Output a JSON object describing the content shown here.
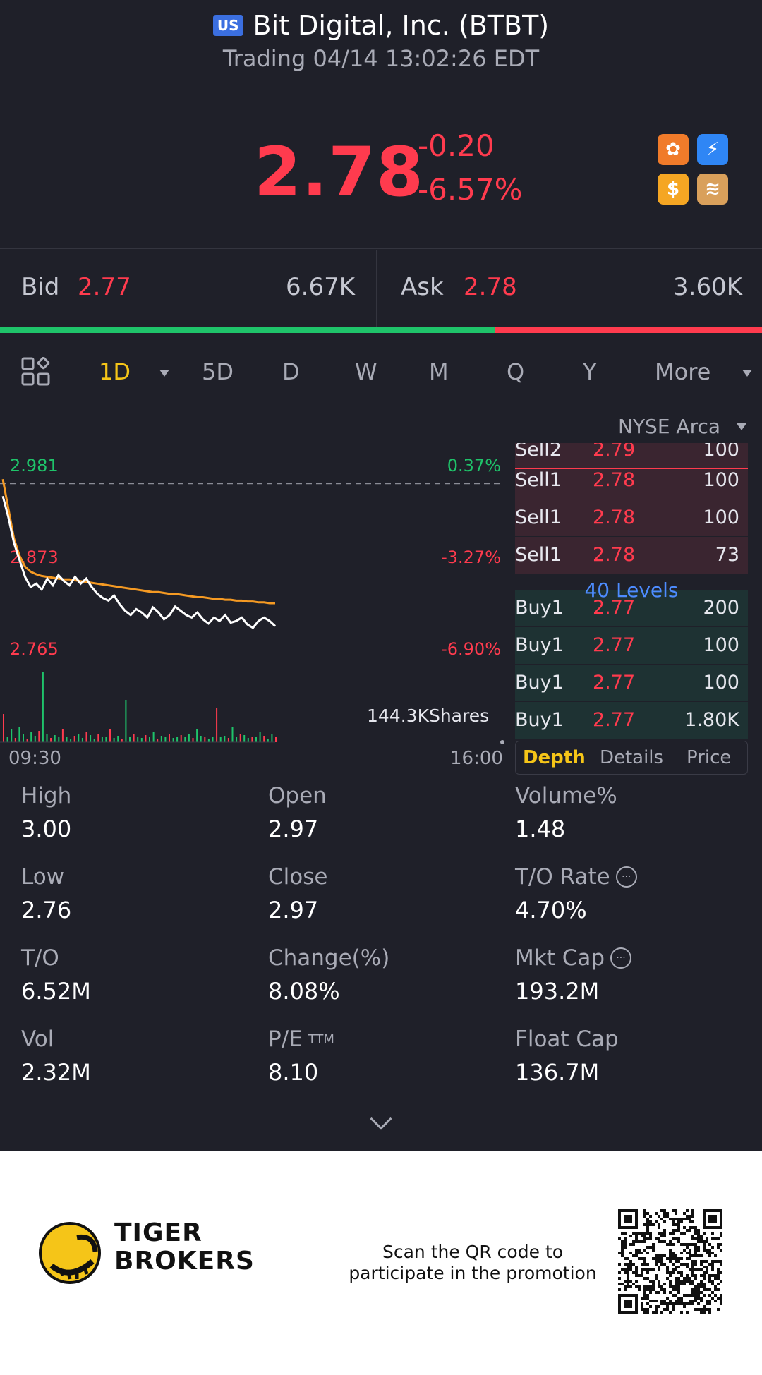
{
  "header": {
    "market_badge": "US",
    "title": "Bit Digital, Inc. (BTBT)",
    "status": "Trading 04/14 13:02:26 EDT"
  },
  "quote": {
    "price": "2.78",
    "change": "-0.20",
    "change_pct": "-6.57%",
    "color_down": "#ff3b4e",
    "color_up": "#1fc36a"
  },
  "feature_icons": [
    {
      "name": "options-icon",
      "color": "#f07b2a",
      "glyph": "✿"
    },
    {
      "name": "fast-trade-icon",
      "color": "#2f86f5",
      "glyph": "⚡"
    },
    {
      "name": "dividend-icon",
      "color": "#f5a623",
      "glyph": "$"
    },
    {
      "name": "stock-lending-icon",
      "color": "#d9a05b",
      "glyph": "≋"
    }
  ],
  "bid_ask": {
    "bid_label": "Bid",
    "bid_price": "2.77",
    "bid_size": "6.67K",
    "ask_label": "Ask",
    "ask_price": "2.78",
    "ask_size": "3.60K",
    "bid_ratio": 0.65
  },
  "period_tabs": {
    "items": [
      "1D",
      "5D",
      "D",
      "W",
      "M",
      "Q",
      "Y",
      "More"
    ],
    "active": "1D"
  },
  "exchange": "NYSE Arca",
  "chart_data": {
    "type": "line",
    "x_ticks": [
      "09:30",
      "16:00"
    ],
    "y_labels_left": [
      "2.981",
      "2.873",
      "2.765"
    ],
    "y_labels_right": [
      "0.37%",
      "-3.27%",
      "-6.90%"
    ],
    "ylim": [
      2.765,
      2.981
    ],
    "prev_close": 2.97,
    "series": [
      {
        "name": "",
        "color": "#ffffff",
        "values": [
          2.955,
          2.93,
          2.9,
          2.88,
          2.86,
          2.848,
          2.852,
          2.845,
          2.858,
          2.85,
          2.862,
          2.855,
          2.85,
          2.86,
          2.852,
          2.858,
          2.848,
          2.84,
          2.835,
          2.832,
          2.838,
          2.828,
          2.82,
          2.815,
          2.822,
          2.818,
          2.812,
          2.824,
          2.818,
          2.81,
          2.815,
          2.825,
          2.82,
          2.815,
          2.812,
          2.818,
          2.81,
          2.805,
          2.812,
          2.808,
          2.815,
          2.806,
          2.808,
          2.812,
          2.804,
          2.8,
          2.808,
          2.812,
          2.808,
          2.802
        ]
      },
      {
        "name": "",
        "color": "#f59a23",
        "values": [
          2.975,
          2.94,
          2.905,
          2.885,
          2.872,
          2.866,
          2.863,
          2.861,
          2.86,
          2.859,
          2.858,
          2.857,
          2.857,
          2.856,
          2.855,
          2.854,
          2.853,
          2.852,
          2.851,
          2.85,
          2.849,
          2.848,
          2.847,
          2.846,
          2.845,
          2.844,
          2.843,
          2.842,
          2.842,
          2.841,
          2.84,
          2.84,
          2.839,
          2.838,
          2.837,
          2.836,
          2.836,
          2.835,
          2.834,
          2.834,
          2.833,
          2.833,
          2.832,
          2.832,
          2.831,
          2.831,
          2.83,
          2.83,
          2.829,
          2.829
        ]
      }
    ],
    "volume_label": "144.3KShares",
    "volume": [
      40,
      8,
      18,
      6,
      22,
      12,
      5,
      14,
      9,
      16,
      100,
      12,
      6,
      10,
      8,
      18,
      7,
      5,
      9,
      11,
      6,
      14,
      10,
      4,
      12,
      8,
      7,
      18,
      6,
      9,
      5,
      60,
      8,
      12,
      7,
      6,
      10,
      8,
      14,
      5,
      9,
      7,
      11,
      6,
      8,
      10,
      7,
      12,
      6,
      18,
      9,
      7,
      5,
      8,
      48,
      7,
      9,
      6,
      22,
      8,
      12,
      10,
      6,
      8,
      7,
      14,
      9,
      5,
      12,
      8
    ]
  },
  "order_book": {
    "rows": [
      {
        "side": "Sell2",
        "price": "2.79",
        "qty": "100",
        "type": "sell"
      },
      {
        "side": "Sell1",
        "price": "2.78",
        "qty": "100",
        "type": "sell"
      },
      {
        "side": "Sell1",
        "price": "2.78",
        "qty": "100",
        "type": "sell"
      },
      {
        "side": "Sell1",
        "price": "2.78",
        "qty": "73",
        "type": "sell"
      },
      {
        "side": "Buy1",
        "price": "2.77",
        "qty": "200",
        "type": "buy"
      },
      {
        "side": "Buy1",
        "price": "2.77",
        "qty": "100",
        "type": "buy"
      },
      {
        "side": "Buy1",
        "price": "2.77",
        "qty": "100",
        "type": "buy"
      },
      {
        "side": "Buy1",
        "price": "2.77",
        "qty": "1.80K",
        "type": "buy"
      }
    ],
    "levels_label": "40 Levels",
    "tabs": [
      "Depth",
      "Details",
      "Price"
    ],
    "active_tab": "Depth"
  },
  "stats": [
    {
      "label": "High",
      "value": "3.00"
    },
    {
      "label": "Open",
      "value": "2.97"
    },
    {
      "label": "Volume%",
      "value": "1.48"
    },
    {
      "label": "Low",
      "value": "2.76"
    },
    {
      "label": "Close",
      "value": "2.97"
    },
    {
      "label": "T/O Rate",
      "value": "4.70%",
      "info": true
    },
    {
      "label": "T/O",
      "value": "6.52M"
    },
    {
      "label": "Change(%)",
      "value": "8.08%"
    },
    {
      "label": "Mkt Cap",
      "value": "193.2M",
      "info": true
    },
    {
      "label": "Vol",
      "value": "2.32M"
    },
    {
      "label": "P/E",
      "label_sup": "TTM",
      "value": "8.10"
    },
    {
      "label": "Float Cap",
      "value": "136.7M"
    }
  ],
  "footer": {
    "brand_line1": "TIGER",
    "brand_line2": "BROKERS",
    "promo_line1": "Scan the QR code to",
    "promo_line2": "participate in the promotion"
  }
}
